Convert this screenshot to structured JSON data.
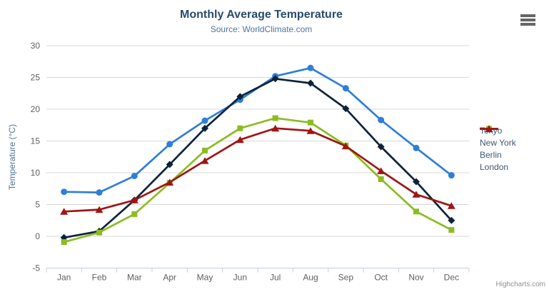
{
  "header": {
    "title": "Monthly Average Temperature",
    "subtitle": "Source: WorldClimate.com"
  },
  "credits": {
    "label": "Highcharts.com"
  },
  "menu": {
    "icon": "hamburger-icon"
  },
  "colors": {
    "title": "#274b6d",
    "subtitle": "#4d759e",
    "axis_title": "#4d759e",
    "axis_label": "#606060",
    "grid_line": "#d8d8d8",
    "axis_line": "#c0d0e0",
    "legend_text": "#3e576f",
    "credits_text": "#909090",
    "menu_icon": "#666666"
  },
  "chart_data": {
    "type": "line",
    "title": "Monthly Average Temperature",
    "subtitle": "Source: WorldClimate.com",
    "xlabel": "",
    "ylabel": "Temperature (°C)",
    "ylim": [
      -5,
      30
    ],
    "ytick_step": 5,
    "ytick_labels": [
      "-5",
      "0",
      "5",
      "10",
      "15",
      "20",
      "25",
      "30"
    ],
    "categories": [
      "Jan",
      "Feb",
      "Mar",
      "Apr",
      "May",
      "Jun",
      "Jul",
      "Aug",
      "Sep",
      "Oct",
      "Nov",
      "Dec"
    ],
    "grid": true,
    "legend_position": "right",
    "series": [
      {
        "name": "Tokyo",
        "color": "#2f7ed8",
        "marker": "circle",
        "values": [
          7.0,
          6.9,
          9.5,
          14.5,
          18.2,
          21.5,
          25.2,
          26.5,
          23.3,
          18.3,
          13.9,
          9.6
        ]
      },
      {
        "name": "New York",
        "color": "#0d233a",
        "marker": "diamond",
        "values": [
          -0.2,
          0.8,
          5.7,
          11.3,
          17.0,
          22.0,
          24.8,
          24.1,
          20.1,
          14.1,
          8.6,
          2.5
        ]
      },
      {
        "name": "Berlin",
        "color": "#8bbc21",
        "marker": "square",
        "values": [
          -0.9,
          0.6,
          3.5,
          8.4,
          13.5,
          17.0,
          18.6,
          17.9,
          14.3,
          9.0,
          3.9,
          1.0
        ]
      },
      {
        "name": "London",
        "color": "#a01414",
        "marker": "triangle",
        "values": [
          3.9,
          4.2,
          5.7,
          8.5,
          11.9,
          15.2,
          17.0,
          16.6,
          14.2,
          10.3,
          6.6,
          4.8
        ]
      }
    ]
  }
}
